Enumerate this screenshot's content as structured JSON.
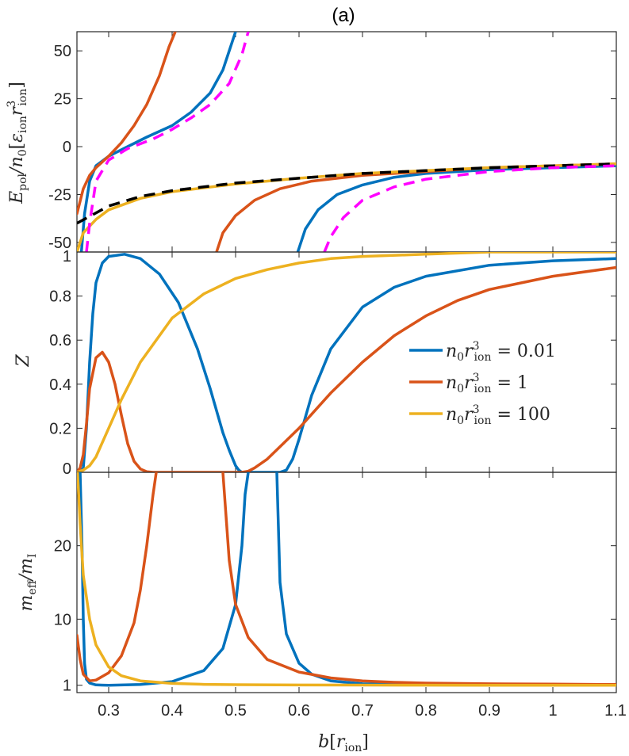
{
  "title": "(a)",
  "xlabel": "b[r_ion]",
  "xticks": [
    "0.3",
    "0.4",
    "0.5",
    "0.6",
    "0.7",
    "0.8",
    "0.9",
    "1",
    "1.1"
  ],
  "colors": {
    "blue": "#0072BD",
    "orange": "#D95319",
    "yellow": "#EDB120",
    "magenta": "#FF00FF",
    "black": "#000000"
  },
  "legend": [
    "n_0 r_ion^3 = 0.01",
    "n_0 r_ion^3 = 1",
    "n_0 r_ion^3 = 100"
  ],
  "chart_data": [
    {
      "type": "line",
      "ylabel": "E_pol / n_0 [ε_ion r_ion^3]",
      "xlim": [
        0.25,
        1.1
      ],
      "ylim": [
        -55,
        60
      ],
      "yticks": [
        "50",
        "25",
        "0",
        "-25",
        "-50"
      ],
      "series": [
        {
          "name": "n_0 r_ion^3 = 0.01",
          "color": "blue",
          "style": "solid",
          "x": [
            0.257,
            0.262,
            0.27,
            0.28,
            0.3,
            0.33,
            0.36,
            0.4,
            0.43,
            0.46,
            0.48,
            0.492,
            0.5
          ],
          "y": [
            -55,
            -35,
            -18,
            -10,
            -5,
            0,
            5,
            11,
            18,
            28,
            40,
            52,
            60
          ]
        },
        {
          "name": "n_0 r_ion^3 = 0.01",
          "color": "blue",
          "style": "solid",
          "x": [
            0.598,
            0.61,
            0.63,
            0.66,
            0.7,
            0.75,
            0.8,
            0.9,
            1.0,
            1.1
          ],
          "y": [
            -55,
            -43,
            -33,
            -25,
            -20,
            -16,
            -14,
            -12,
            -11,
            -10
          ]
        },
        {
          "name": "n_0 r_ion^3 = 1",
          "color": "orange",
          "style": "solid",
          "x": [
            0.25,
            0.26,
            0.27,
            0.28,
            0.3,
            0.32,
            0.34,
            0.36,
            0.38,
            0.395,
            0.405
          ],
          "y": [
            -35,
            -22,
            -15,
            -11,
            -5,
            2,
            11,
            22,
            37,
            52,
            60
          ]
        },
        {
          "name": "n_0 r_ion^3 = 1",
          "color": "orange",
          "style": "solid",
          "x": [
            0.47,
            0.48,
            0.5,
            0.53,
            0.57,
            0.62,
            0.7,
            0.8,
            0.9,
            1.0,
            1.1
          ],
          "y": [
            -55,
            -45,
            -36,
            -28,
            -22,
            -18,
            -15,
            -13,
            -11,
            -10,
            -9
          ]
        },
        {
          "name": "n_0 r_ion^3 = 100",
          "color": "yellow",
          "style": "solid",
          "x": [
            0.25,
            0.26,
            0.28,
            0.3,
            0.35,
            0.4,
            0.5,
            0.6,
            0.7,
            0.8,
            0.9,
            1.0,
            1.1
          ],
          "y": [
            -55,
            -45,
            -38,
            -33,
            -27,
            -23.5,
            -19.5,
            -16.5,
            -14,
            -12.5,
            -11,
            -10,
            -9
          ]
        },
        {
          "color": "black",
          "style": "dashed",
          "x": [
            0.25,
            0.3,
            0.35,
            0.4,
            0.5,
            0.6,
            0.7,
            0.8,
            0.9,
            1.0,
            1.1
          ],
          "y": [
            -40,
            -31,
            -26,
            -23,
            -19,
            -16.5,
            -14,
            -12.5,
            -11,
            -10,
            -9
          ]
        },
        {
          "color": "magenta",
          "style": "dashed",
          "x": [
            0.265,
            0.27,
            0.28,
            0.3,
            0.33,
            0.37,
            0.4,
            0.43,
            0.46,
            0.49,
            0.51,
            0.52
          ],
          "y": [
            -55,
            -40,
            -18,
            -7,
            -1,
            4,
            9,
            15,
            22,
            33,
            48,
            60
          ]
        },
        {
          "color": "magenta",
          "style": "dashed",
          "x": [
            0.64,
            0.65,
            0.67,
            0.7,
            0.75,
            0.8,
            0.9,
            1.0,
            1.1
          ],
          "y": [
            -55,
            -47,
            -37,
            -28,
            -21,
            -17,
            -13,
            -11,
            -10
          ]
        }
      ]
    },
    {
      "type": "line",
      "ylabel": "Z",
      "xlim": [
        0.25,
        1.1
      ],
      "ylim": [
        0,
        1
      ],
      "yticks": [
        "1",
        "0.8",
        "0.6",
        "0.4",
        "0.2",
        "0"
      ],
      "legend_position": "right",
      "series": [
        {
          "name": "n_0 r_ion^3 = 0.01",
          "color": "blue",
          "x": [
            0.25,
            0.255,
            0.26,
            0.265,
            0.27,
            0.275,
            0.28,
            0.29,
            0.3,
            0.325,
            0.35,
            0.38,
            0.41,
            0.44,
            0.46,
            0.48,
            0.49,
            0.5,
            0.505,
            0.51,
            0.52,
            0.55,
            0.57,
            0.58,
            0.59,
            0.6,
            0.62,
            0.65,
            0.7,
            0.75,
            0.8,
            0.9,
            1.0,
            1.1
          ],
          "y": [
            0,
            0,
            0.02,
            0.2,
            0.5,
            0.72,
            0.86,
            0.95,
            0.98,
            0.99,
            0.97,
            0.9,
            0.77,
            0.56,
            0.38,
            0.18,
            0.1,
            0.03,
            0.01,
            0,
            0,
            0,
            0,
            0.01,
            0.06,
            0.15,
            0.35,
            0.56,
            0.75,
            0.84,
            0.89,
            0.94,
            0.96,
            0.97
          ]
        },
        {
          "name": "n_0 r_ion^3 = 1",
          "color": "orange",
          "x": [
            0.25,
            0.255,
            0.26,
            0.265,
            0.27,
            0.28,
            0.29,
            0.3,
            0.31,
            0.32,
            0.33,
            0.34,
            0.35,
            0.36,
            0.37,
            0.38,
            0.4,
            0.45,
            0.5,
            0.51,
            0.52,
            0.53,
            0.55,
            0.6,
            0.65,
            0.7,
            0.75,
            0.8,
            0.85,
            0.9,
            1.0,
            1.1
          ],
          "y": [
            0,
            0.02,
            0.08,
            0.22,
            0.38,
            0.52,
            0.545,
            0.5,
            0.4,
            0.26,
            0.13,
            0.05,
            0.015,
            0.003,
            0,
            0,
            0,
            0,
            0,
            0,
            0.005,
            0.02,
            0.06,
            0.2,
            0.36,
            0.5,
            0.62,
            0.71,
            0.78,
            0.83,
            0.89,
            0.93
          ]
        },
        {
          "name": "n_0 r_ion^3 = 100",
          "color": "yellow",
          "x": [
            0.25,
            0.26,
            0.27,
            0.28,
            0.3,
            0.32,
            0.35,
            0.4,
            0.45,
            0.5,
            0.55,
            0.6,
            0.65,
            0.7,
            0.8,
            0.9,
            1.0,
            1.1
          ],
          "y": [
            0,
            0.01,
            0.03,
            0.07,
            0.2,
            0.33,
            0.5,
            0.7,
            0.81,
            0.88,
            0.92,
            0.95,
            0.97,
            0.98,
            0.99,
            1.0,
            1.0,
            1.0
          ]
        }
      ]
    },
    {
      "type": "line",
      "ylabel": "m_eff / m_I",
      "xlim": [
        0.25,
        1.1
      ],
      "ylim": [
        0,
        30
      ],
      "yticks": [
        "20",
        "10",
        "1"
      ],
      "series": [
        {
          "name": "n_0 r_ion^3 = 0.01",
          "color": "blue",
          "x": [
            0.255,
            0.258,
            0.26,
            0.262,
            0.265,
            0.27,
            0.28,
            0.3,
            0.35,
            0.4,
            0.45,
            0.48,
            0.5,
            0.51,
            0.515,
            0.52
          ],
          "y": [
            30,
            20,
            10,
            4,
            1.8,
            1.3,
            1.05,
            1.0,
            1.1,
            1.5,
            3,
            6,
            12,
            20,
            27,
            30
          ]
        },
        {
          "name": "n_0 r_ion^3 = 0.01",
          "color": "blue",
          "x": [
            0.565,
            0.567,
            0.57,
            0.58,
            0.6,
            0.62,
            0.65,
            0.7,
            0.8,
            0.9,
            1.0,
            1.1
          ],
          "y": [
            30,
            24,
            15,
            8,
            4,
            2.5,
            1.6,
            1.2,
            1.05,
            1.02,
            1.01,
            1.0
          ]
        },
        {
          "name": "n_0 r_ion^3 = 1",
          "color": "orange",
          "x": [
            0.25,
            0.255,
            0.26,
            0.27,
            0.28,
            0.3,
            0.32,
            0.34,
            0.35,
            0.36,
            0.37,
            0.375
          ],
          "y": [
            7.8,
            4.5,
            2.5,
            1.6,
            1.7,
            2.7,
            5,
            9.5,
            14,
            20,
            27,
            30
          ]
        },
        {
          "name": "n_0 r_ion^3 = 1",
          "color": "orange",
          "x": [
            0.48,
            0.485,
            0.49,
            0.5,
            0.52,
            0.55,
            0.6,
            0.65,
            0.7,
            0.75,
            0.8,
            0.9,
            1.0,
            1.1
          ],
          "y": [
            30,
            24,
            18,
            12,
            7.5,
            4.5,
            2.8,
            2,
            1.6,
            1.4,
            1.3,
            1.2,
            1.15,
            1.1
          ]
        },
        {
          "name": "n_0 r_ion^3 = 100",
          "color": "yellow",
          "x": [
            0.251,
            0.255,
            0.26,
            0.27,
            0.28,
            0.3,
            0.32,
            0.35,
            0.4,
            0.45,
            0.5,
            0.6,
            0.7,
            0.8,
            0.9,
            1.0,
            1.1
          ],
          "y": [
            30,
            23,
            16,
            10,
            6.5,
            3.5,
            2.3,
            1.6,
            1.25,
            1.12,
            1.08,
            1.04,
            1.02,
            1.01,
            1.0,
            1.0,
            1.0
          ]
        }
      ]
    }
  ]
}
